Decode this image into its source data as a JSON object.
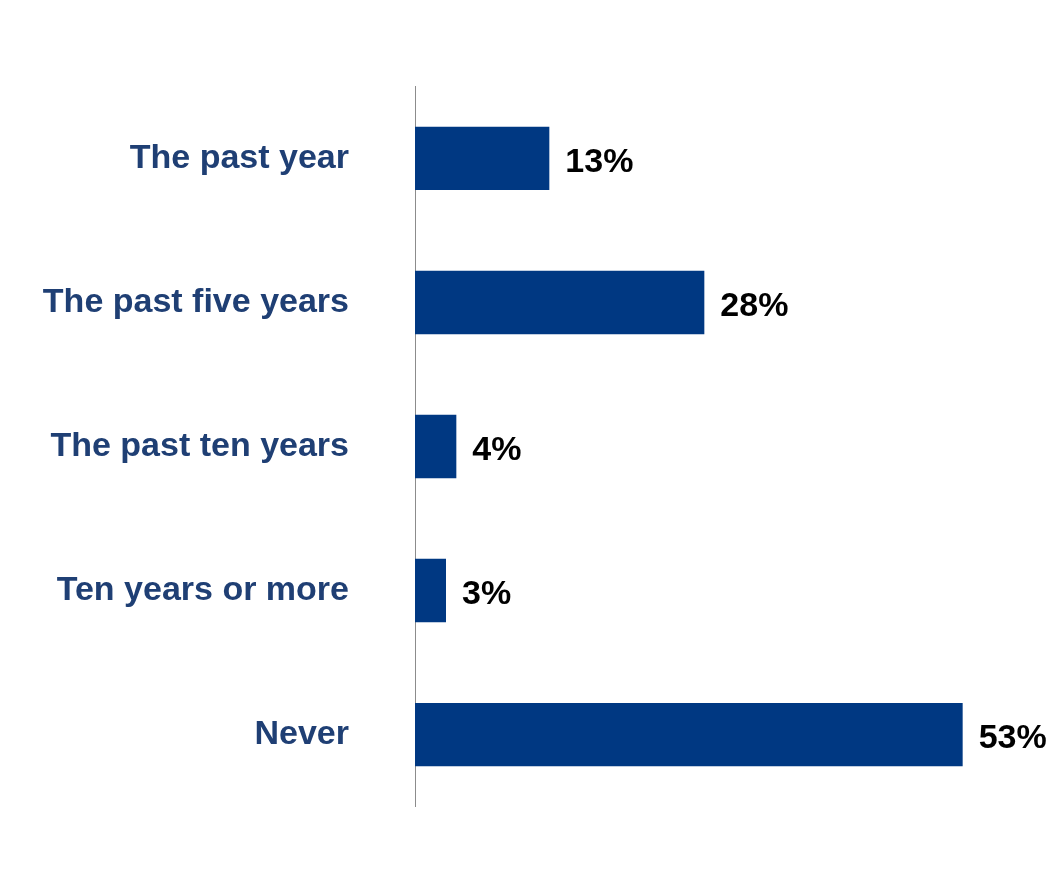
{
  "chart_data": {
    "type": "bar",
    "orientation": "horizontal",
    "categories": [
      "The past year",
      "The past five years",
      "The past ten years",
      "Ten years or more",
      "Never"
    ],
    "values": [
      13,
      28,
      4,
      3,
      53
    ],
    "value_labels": [
      "13%",
      "28%",
      "4%",
      "3%",
      "53%"
    ],
    "color": "#003882",
    "grid": false,
    "legend": false,
    "tick_labels": "y"
  }
}
